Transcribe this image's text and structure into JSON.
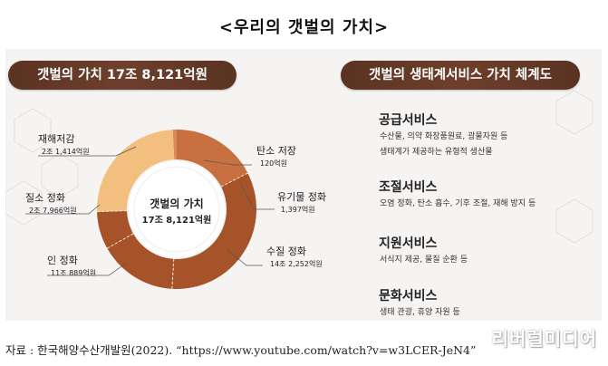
{
  "page_title": "<우리의 갯벌의 가치>",
  "left_header": "갯벌의 가치 17조 8,121억원",
  "right_header": "갯벌의 생태계서비스 가치 체계도",
  "colors": {
    "header_bg": "#5e3626",
    "ring_dark": "#a6532a",
    "ring_light": "#f2bf7e",
    "ring_mid": "#d9895a"
  },
  "chart_data": {
    "type": "pie",
    "donut": true,
    "center_label": "갯벌의 가치",
    "center_value": "17조 8,121억원",
    "slices": [
      {
        "label": "재해저감",
        "value_text": "2조 1,414억원",
        "value": 21414
      },
      {
        "label": "탄소 저장",
        "value_text": "120억원",
        "value": 120
      },
      {
        "label": "유기물 정화",
        "value_text": "1,397억원",
        "value": 1397
      },
      {
        "label": "수질 정화",
        "value_text": "14조 2,252억원",
        "value": 142252
      },
      {
        "label": "인 정화",
        "value_text": "11조 889억원",
        "value": 110889
      },
      {
        "label": "질소 정화",
        "value_text": "2조 7,966억원",
        "value": 27966
      }
    ]
  },
  "services": [
    {
      "title": "공급서비스",
      "lines": [
        "수산물, 의약 화장품원료, 광물자원 등",
        "생태계가 제공하는 유형적 생산물"
      ]
    },
    {
      "title": "조절서비스",
      "lines": [
        "오염 정화, 탄소 흡수, 기후 조절, 재해 방지 등"
      ]
    },
    {
      "title": "지원서비스",
      "lines": [
        "서식지 제공, 물질 순환 등"
      ]
    },
    {
      "title": "문화서비스",
      "lines": [
        "생태 관광, 휴양 자원 등"
      ]
    }
  ],
  "caption": "자료 : 한국해양수산개발원(2022). “https://www.youtube.com/watch?v=w3LCER-JeN4”",
  "watermark": "리버럴미디어"
}
